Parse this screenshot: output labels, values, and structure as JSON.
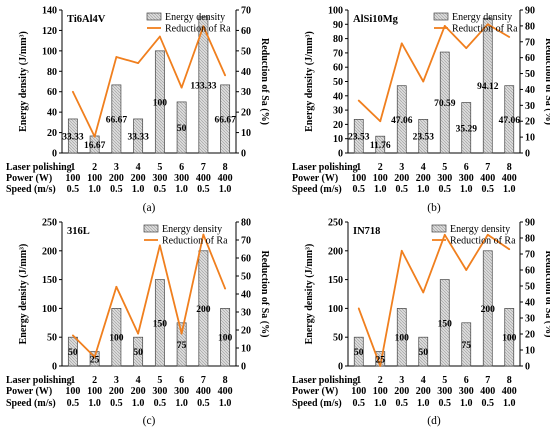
{
  "colors": {
    "bar_fill": "#d9d9d9",
    "bar_stroke": "#444444",
    "line": "#f07f1e",
    "axis": "#000000"
  },
  "row_labels": [
    "Laser polishing",
    "Power (W)",
    "Speed (m/s)"
  ],
  "chart_data": [
    {
      "type": "bar",
      "panel": "(a)",
      "material": "Ti6Al4V",
      "categories": [
        "1",
        "2",
        "3",
        "4",
        "5",
        "6",
        "7",
        "8"
      ],
      "power": [
        "100",
        "100",
        "200",
        "200",
        "300",
        "300",
        "400",
        "400"
      ],
      "speed": [
        "0.5",
        "1.0",
        "0.5",
        "1.0",
        "0.5",
        "1.0",
        "0.5",
        "1.0"
      ],
      "series": [
        {
          "name": "Energy density",
          "axis": "left",
          "values": [
            33.33,
            16.67,
            66.67,
            33.33,
            100,
            50,
            133.33,
            66.67
          ],
          "labels": [
            "33.33",
            "16.67",
            "66.67",
            "33.33",
            "100",
            "50",
            "133.33",
            "66.67"
          ]
        },
        {
          "name": "Reduction of Ra",
          "axis": "right",
          "values": [
            30,
            8,
            47,
            44,
            57,
            32,
            62,
            38
          ]
        }
      ],
      "ylabel": "Energy density (J/mm³)",
      "y2label": "Reduction of Sa (%)",
      "ylim": [
        0,
        140
      ],
      "yticks": [
        0,
        20,
        40,
        60,
        80,
        100,
        120,
        140
      ],
      "y2lim": [
        0,
        70
      ],
      "y2ticks": [
        0,
        10,
        20,
        30,
        40,
        50,
        60,
        70
      ]
    },
    {
      "type": "bar",
      "panel": "(b)",
      "material": "AlSi10Mg",
      "categories": [
        "1",
        "2",
        "3",
        "4",
        "5",
        "6",
        "7",
        "8"
      ],
      "power": [
        "100",
        "100",
        "200",
        "200",
        "300",
        "300",
        "400",
        "400"
      ],
      "speed": [
        "0.5",
        "1.0",
        "0.5",
        "1.0",
        "0.5",
        "1.0",
        "0.5",
        "1.0"
      ],
      "series": [
        {
          "name": "Energy density",
          "axis": "left",
          "values": [
            23.53,
            11.76,
            47.06,
            23.53,
            70.59,
            35.29,
            94.12,
            47.06
          ],
          "labels": [
            "23.53",
            "11.76",
            "47.06",
            "23.53",
            "70.59",
            "35.29",
            "94.12",
            "47.06"
          ]
        },
        {
          "name": "Reduction of Ra",
          "axis": "right",
          "values": [
            33,
            20,
            69,
            45,
            80,
            66,
            81,
            73
          ]
        }
      ],
      "ylabel": "Energy density (J/mm³)",
      "y2label": "Reduction of Sa (%)",
      "ylim": [
        0,
        100
      ],
      "yticks": [
        0,
        10,
        20,
        30,
        40,
        50,
        60,
        70,
        80,
        90,
        100
      ],
      "y2lim": [
        0,
        90
      ],
      "y2ticks": [
        0,
        10,
        20,
        30,
        40,
        50,
        60,
        70,
        80,
        90
      ]
    },
    {
      "type": "bar",
      "panel": "(c)",
      "material": "316L",
      "categories": [
        "1",
        "2",
        "3",
        "4",
        "5",
        "6",
        "7",
        "8"
      ],
      "power": [
        "100",
        "100",
        "200",
        "200",
        "300",
        "300",
        "400",
        "400"
      ],
      "speed": [
        "0.5",
        "1.0",
        "0.5",
        "1.0",
        "0.5",
        "1.0",
        "0.5",
        "1.0"
      ],
      "series": [
        {
          "name": "Energy density",
          "axis": "left",
          "values": [
            50,
            25,
            100,
            50,
            150,
            75,
            200,
            100
          ],
          "labels": [
            "50",
            "25",
            "100",
            "50",
            "150",
            "75",
            "200",
            "100"
          ]
        },
        {
          "name": "Reduction of Ra",
          "axis": "right",
          "values": [
            17,
            5,
            44,
            18,
            67,
            18,
            73,
            43
          ]
        }
      ],
      "ylabel": "Energy density (J/mm³)",
      "y2label": "Reduction of Sa (%)",
      "ylim": [
        0,
        250
      ],
      "yticks": [
        0,
        50,
        100,
        150,
        200,
        250
      ],
      "y2lim": [
        0,
        80
      ],
      "y2ticks": [
        0,
        10,
        20,
        30,
        40,
        50,
        60,
        70,
        80
      ]
    },
    {
      "type": "bar",
      "panel": "(d)",
      "material": "IN718",
      "categories": [
        "1",
        "2",
        "3",
        "4",
        "5",
        "6",
        "7",
        "8"
      ],
      "power": [
        "100",
        "100",
        "200",
        "200",
        "300",
        "300",
        "400",
        "400"
      ],
      "speed": [
        "0.5",
        "1.0",
        "0.5",
        "1.0",
        "0.5",
        "1.0",
        "0.5",
        "1.0"
      ],
      "series": [
        {
          "name": "Energy density",
          "axis": "left",
          "values": [
            50,
            25,
            100,
            50,
            150,
            75,
            200,
            100
          ],
          "labels": [
            "50",
            "25",
            "100",
            "50",
            "150",
            "75",
            "200",
            "100"
          ]
        },
        {
          "name": "Reduction of Ra",
          "axis": "right",
          "values": [
            36,
            0,
            72,
            46,
            82,
            60,
            82,
            73
          ]
        }
      ],
      "ylabel": "Energy density (J/mm³)",
      "y2label": "Reduction of Sa (%)",
      "ylim": [
        0,
        250
      ],
      "yticks": [
        0,
        50,
        100,
        150,
        200,
        250
      ],
      "y2lim": [
        0,
        90
      ],
      "y2ticks": [
        0,
        10,
        20,
        30,
        40,
        50,
        60,
        70,
        80,
        90
      ]
    }
  ]
}
